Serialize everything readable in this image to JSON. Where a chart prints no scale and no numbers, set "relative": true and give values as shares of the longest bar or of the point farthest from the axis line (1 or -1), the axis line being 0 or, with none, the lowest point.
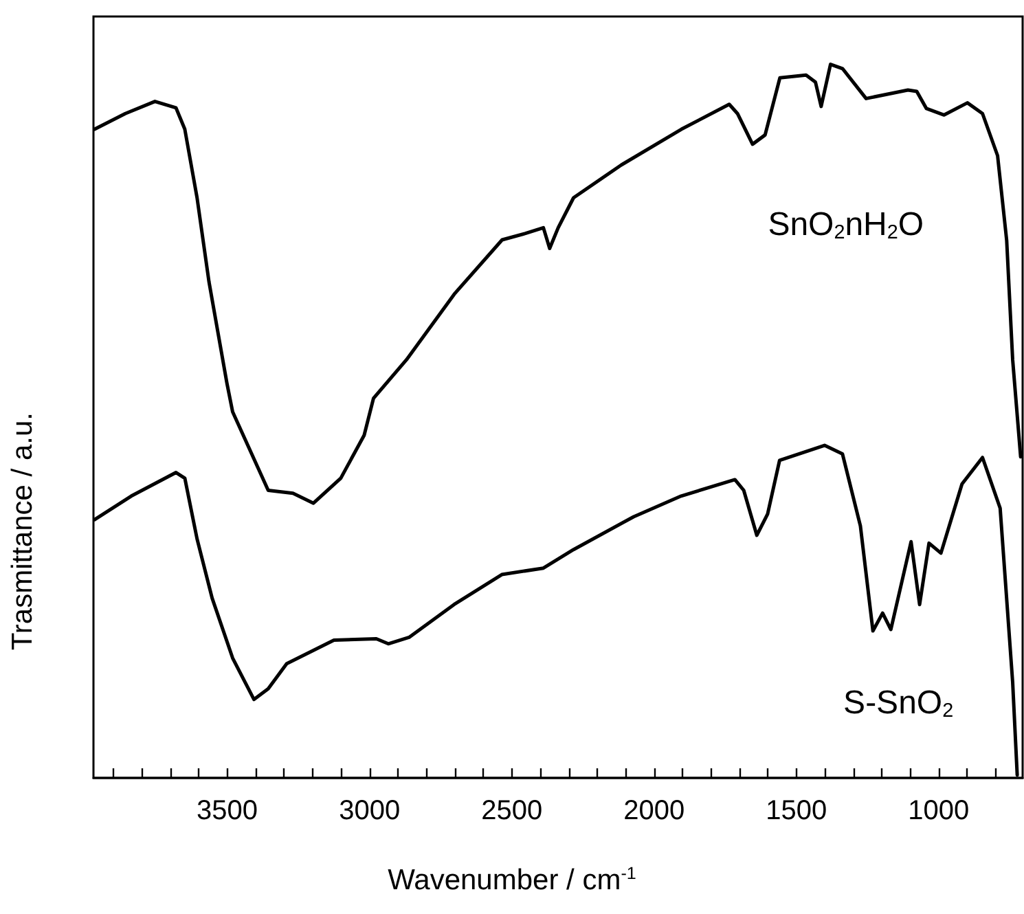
{
  "chart_data": {
    "type": "line",
    "relative": true,
    "xlabel": "Wavenumber / cm$^{-1}$",
    "ylabel": "Trasmittance / a.u.",
    "xlim": [
      3970,
      705
    ],
    "xticks": [
      {
        "value": 3900,
        "label": null
      },
      {
        "value": 3800,
        "label": null
      },
      {
        "value": 3700,
        "label": null
      },
      {
        "value": 3600,
        "label": null
      },
      3500,
      {
        "value": 3400,
        "label": null
      },
      {
        "value": 3300,
        "label": null
      },
      {
        "value": 3200,
        "label": null
      },
      {
        "value": 3100,
        "label": null
      },
      3000,
      {
        "value": 2900,
        "label": null
      },
      {
        "value": 2800,
        "label": null
      },
      {
        "value": 2700,
        "label": null
      },
      {
        "value": 2600,
        "label": null
      },
      2500,
      {
        "value": 2400,
        "label": null
      },
      {
        "value": 2300,
        "label": null
      },
      {
        "value": 2200,
        "label": null
      },
      {
        "value": 2100,
        "label": null
      },
      2000,
      {
        "value": 1900,
        "label": null
      },
      {
        "value": 1800,
        "label": null
      },
      {
        "value": 1700,
        "label": null
      },
      {
        "value": 1600,
        "label": null
      },
      1500,
      {
        "value": 1400,
        "label": null
      },
      {
        "value": 1300,
        "label": null
      },
      {
        "value": 1200,
        "label": null
      },
      {
        "value": 1100,
        "label": null
      },
      1000,
      {
        "value": 900,
        "label": null
      },
      {
        "value": 800,
        "label": null
      }
    ],
    "grid": false,
    "legend": false,
    "line_style": "solid",
    "marker": "none",
    "series": [
      {
        "name": "SnO$_{2}$nH$_{2}$O",
        "color": "#000000",
        "x": [
          3966,
          3858,
          3754,
          3680,
          3649,
          3606,
          3564,
          3501,
          3481,
          3356,
          3269,
          3197,
          3101,
          3019,
          2986,
          2870,
          2702,
          2534,
          2452,
          2389,
          2367,
          2337,
          2283,
          2115,
          1904,
          1736,
          1707,
          1654,
          1610,
          1558,
          1466,
          1433,
          1413,
          1380,
          1338,
          1255,
          1108,
          1077,
          1043,
          981,
          899,
          846,
          793,
          761,
          740,
          712
        ],
        "values": [
          0.909,
          0.931,
          0.948,
          0.939,
          0.909,
          0.813,
          0.695,
          0.553,
          0.513,
          0.403,
          0.399,
          0.385,
          0.42,
          0.48,
          0.532,
          0.586,
          0.678,
          0.754,
          0.763,
          0.771,
          0.742,
          0.771,
          0.813,
          0.859,
          0.909,
          0.944,
          0.931,
          0.888,
          0.901,
          0.981,
          0.985,
          0.975,
          0.941,
          1,
          0.994,
          0.952,
          0.964,
          0.962,
          0.938,
          0.929,
          0.946,
          0.931,
          0.872,
          0.753,
          0.586,
          0.45
        ]
      },
      {
        "name": "S-SnO$_{2}$",
        "color": "#000000",
        "x": [
          3966,
          3837,
          3680,
          3649,
          3606,
          3553,
          3481,
          3406,
          3356,
          3291,
          3125,
          2976,
          2934,
          2861,
          2703,
          2535,
          2389,
          2283,
          2072,
          1905,
          1716,
          1685,
          1639,
          1601,
          1559,
          1401,
          1338,
          1275,
          1231,
          1197,
          1168,
          1097,
          1067,
          1034,
          992,
          918,
          846,
          784,
          740,
          724
        ],
        "values": [
          0.362,
          0.395,
          0.428,
          0.42,
          0.335,
          0.252,
          0.168,
          0.11,
          0.125,
          0.16,
          0.193,
          0.195,
          0.188,
          0.197,
          0.243,
          0.285,
          0.294,
          0.32,
          0.366,
          0.395,
          0.418,
          0.403,
          0.34,
          0.37,
          0.445,
          0.466,
          0.454,
          0.353,
          0.206,
          0.231,
          0.208,
          0.331,
          0.243,
          0.329,
          0.315,
          0.412,
          0.449,
          0.378,
          0.134,
          0.004
        ]
      }
    ]
  }
}
